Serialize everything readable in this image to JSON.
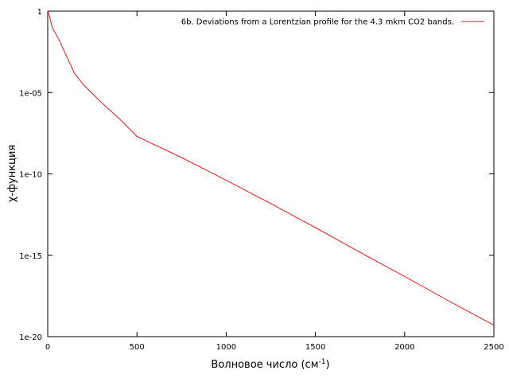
{
  "chart_data": {
    "type": "line",
    "title": "",
    "xlabel": "Волновое число (см",
    "xlabel_sup": "-1",
    "xlabel_close": ")",
    "ylabel": "χ-функция",
    "xlim": [
      0,
      2500
    ],
    "ylim": [
      1e-20,
      1
    ],
    "yscale": "log",
    "grid": false,
    "legend_position": "top-right",
    "x_ticks": [
      0,
      500,
      1000,
      1500,
      2000,
      2500
    ],
    "x_tick_labels": [
      "0",
      "500",
      "1000",
      "1500",
      "2000",
      "2500"
    ],
    "y_ticks": [
      1,
      1e-05,
      1e-10,
      1e-15,
      1e-20
    ],
    "y_tick_labels": [
      "1",
      "1e-05",
      "1e-10",
      "1e-15",
      "1e-20"
    ],
    "series": [
      {
        "name": "6b. Deviations from a Lorentzian profile for the 4.3 mkm CO2 bands.",
        "color": "#e41a1c",
        "x": [
          0,
          10,
          25,
          60,
          150,
          200,
          300,
          400,
          500,
          750,
          1000,
          1250,
          1500,
          1750,
          2000,
          2250,
          2500
        ],
        "y": [
          1,
          0.5,
          0.1,
          0.02,
          0.00015,
          3e-05,
          2.5e-06,
          2.5e-07,
          2e-08,
          1e-09,
          4e-11,
          1.5e-12,
          5e-14,
          1.5e-15,
          5e-17,
          1.5e-18,
          5e-20
        ]
      }
    ]
  }
}
